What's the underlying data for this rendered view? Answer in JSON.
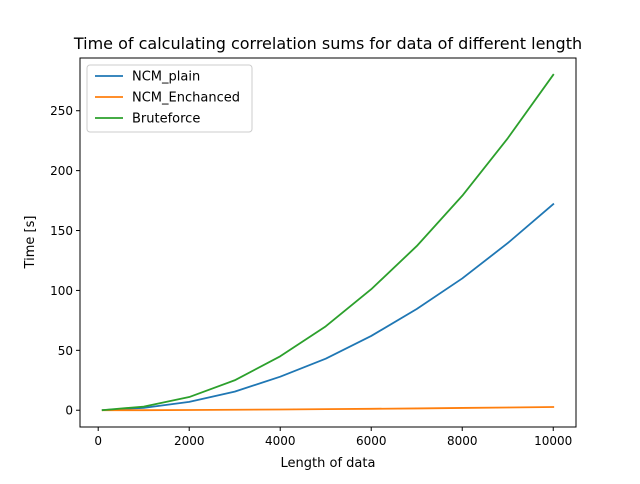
{
  "chart_data": {
    "type": "line",
    "title": "Time of calculating correlation sums for data of different length",
    "xlabel": "Length of data",
    "ylabel": "Time [s]",
    "xlim": [
      -400,
      10500
    ],
    "ylim": [
      -14,
      294
    ],
    "xticks": [
      0,
      2000,
      4000,
      6000,
      8000,
      10000
    ],
    "xtick_labels": [
      "0",
      "2000",
      "4000",
      "6000",
      "8000",
      "10000"
    ],
    "yticks": [
      0,
      50,
      100,
      150,
      200,
      250
    ],
    "ytick_labels": [
      "0",
      "50",
      "100",
      "150",
      "200",
      "250"
    ],
    "grid": false,
    "legend_position": "upper-left",
    "x": [
      100,
      1000,
      2000,
      3000,
      4000,
      5000,
      6000,
      7000,
      8000,
      9000,
      10000
    ],
    "series": [
      {
        "name": "NCM_plain",
        "color": "#1f77b4",
        "values": [
          0.1,
          2,
          7,
          15.5,
          28,
          43,
          62,
          84.5,
          110,
          139.5,
          172
        ]
      },
      {
        "name": "NCM_Enchanced",
        "color": "#ff7f0e",
        "values": [
          0,
          0.05,
          0.2,
          0.4,
          0.6,
          0.9,
          1.2,
          1.5,
          1.9,
          2.3,
          2.7
        ]
      },
      {
        "name": "Bruteforce",
        "color": "#2ca02c",
        "values": [
          0.1,
          3,
          11,
          25,
          45,
          70,
          101,
          137,
          179,
          227,
          280
        ]
      }
    ]
  }
}
